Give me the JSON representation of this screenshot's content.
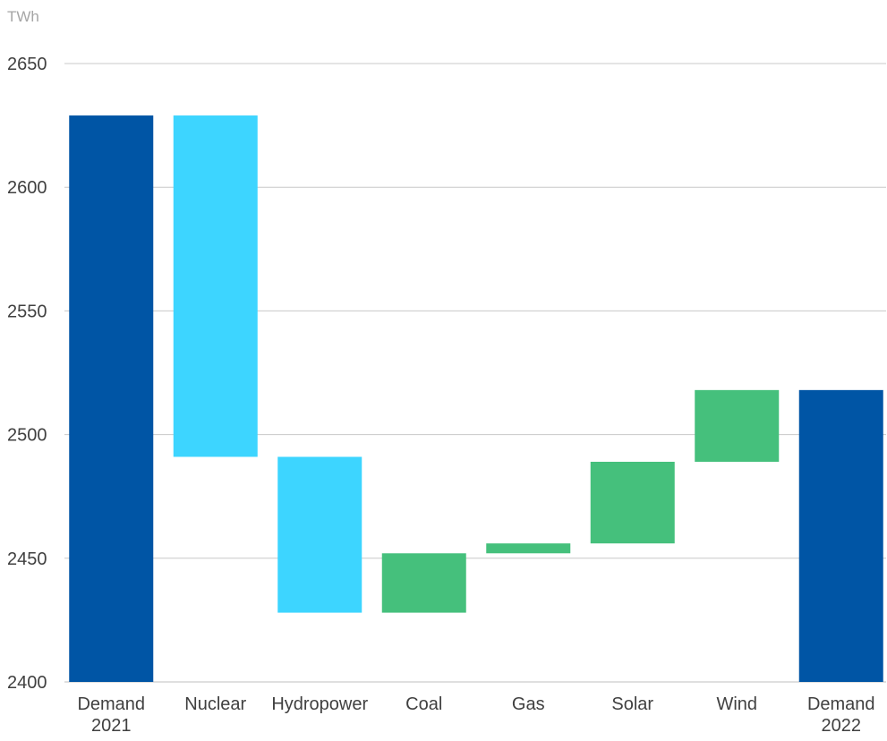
{
  "chart_data": {
    "type": "bar",
    "subtype": "waterfall",
    "unit_label": "TWh",
    "ylim": [
      2400,
      2650
    ],
    "y_ticks": [
      2400,
      2450,
      2500,
      2550,
      2600,
      2650
    ],
    "grid": true,
    "legend": "none",
    "categories": [
      [
        "Demand",
        "2021"
      ],
      [
        "Nuclear"
      ],
      [
        "Hydropower"
      ],
      [
        "Coal"
      ],
      [
        "Gas"
      ],
      [
        "Solar"
      ],
      [
        "Wind"
      ],
      [
        "Demand",
        "2022"
      ]
    ],
    "bars": [
      {
        "kind": "total",
        "start": 2400,
        "end": 2629
      },
      {
        "kind": "decrease",
        "start": 2629,
        "end": 2491
      },
      {
        "kind": "decrease",
        "start": 2491,
        "end": 2428
      },
      {
        "kind": "increase",
        "start": 2428,
        "end": 2452
      },
      {
        "kind": "increase",
        "start": 2452,
        "end": 2456
      },
      {
        "kind": "increase",
        "start": 2456,
        "end": 2489
      },
      {
        "kind": "increase",
        "start": 2489,
        "end": 2518
      },
      {
        "kind": "total",
        "start": 2400,
        "end": 2518
      }
    ],
    "colors": {
      "total": "#0055a5",
      "decrease": "#3dd5ff",
      "increase": "#45c07c"
    }
  }
}
